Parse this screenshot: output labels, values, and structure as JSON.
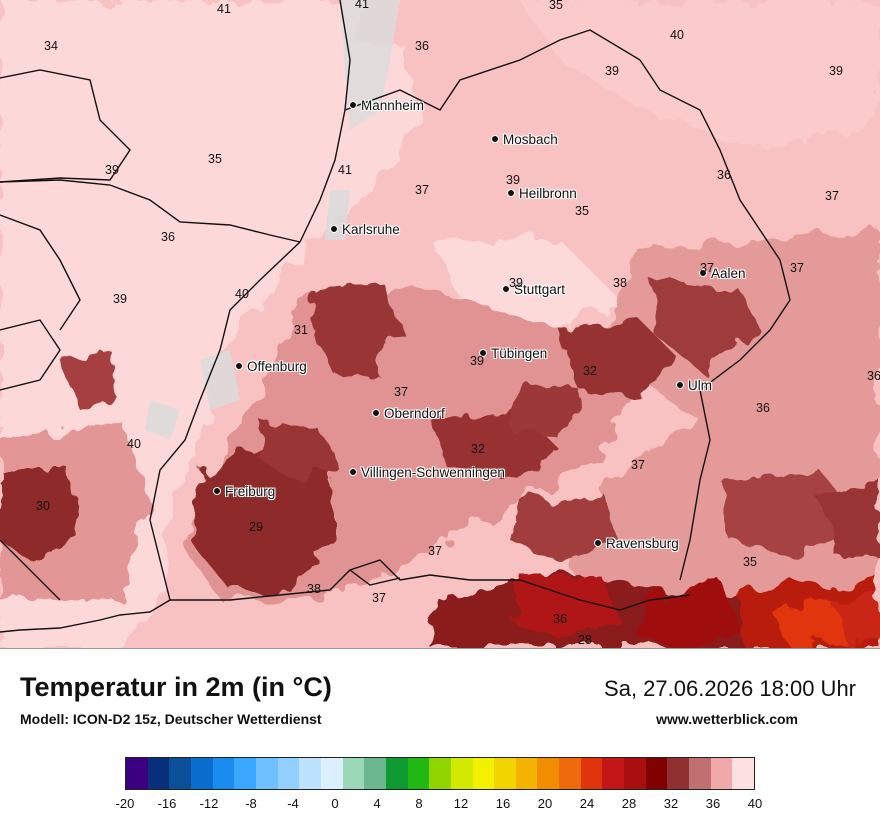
{
  "title": "Temperatur in 2m (in °C)",
  "model": "Modell: ICON-D2 15z, Deutscher Wetterdienst",
  "datetime": "Sa, 27.06.2026 18:00 Uhr",
  "website": "www.wetterblick.com",
  "cities": [
    "Mannheim",
    "Mosbach",
    "Heilbronn",
    "Karlsruhe",
    "Aalen",
    "Stuttgart",
    "Offenburg",
    "Tübingen",
    "Ulm",
    "Oberndorf",
    "Villingen-Schwenningen",
    "Freiburg",
    "Ravensburg"
  ],
  "map_values": [
    "41",
    "41",
    "35",
    "34",
    "36",
    "40",
    "39",
    "39",
    "35",
    "39",
    "41",
    "37",
    "39",
    "36",
    "37",
    "35",
    "36",
    "39",
    "37",
    "40",
    "39",
    "38",
    "37",
    "31",
    "39",
    "32",
    "36",
    "36",
    "37",
    "40",
    "32",
    "37",
    "30",
    "29",
    "37",
    "35",
    "38",
    "37",
    "36",
    "28"
  ],
  "legend": {
    "colors": [
      "#3b007f",
      "#0a2f7a",
      "#0a4f98",
      "#0a6ccc",
      "#1a8cf0",
      "#39a6ff",
      "#6ec0ff",
      "#93d0ff",
      "#bde2ff",
      "#ddf0ff",
      "#9ad8b8",
      "#6bb88f",
      "#0e9a30",
      "#22b814",
      "#90d400",
      "#d2ea00",
      "#f2f200",
      "#f2d400",
      "#f2b400",
      "#f28c00",
      "#ee6a0c",
      "#e0340c",
      "#c41616",
      "#a81010",
      "#800000",
      "#903030",
      "#c07070",
      "#f0a8a8",
      "#fde0e0"
    ],
    "ticks": [
      "-20",
      "-16",
      "-12",
      "-8",
      "-4",
      "0",
      "4",
      "8",
      "12",
      "16",
      "20",
      "24",
      "28",
      "32",
      "36",
      "40"
    ]
  }
}
